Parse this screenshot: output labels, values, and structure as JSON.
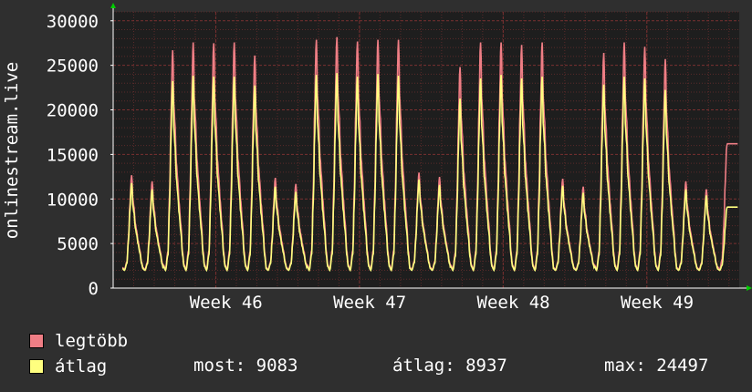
{
  "colors": {
    "background": "#2f2f2f",
    "plot_background": "#1e1e1e",
    "grid": "#5a2a2a",
    "axis": "#ffffff",
    "arrow": "#00cc00",
    "series_max": "#ef7e85",
    "series_avg": "#ffff7f"
  },
  "chart_data": {
    "type": "area",
    "ylabel": "onlinestream.live",
    "ylim": [
      0,
      31000
    ],
    "yticks": [
      "0",
      "5000",
      "10000",
      "15000",
      "20000",
      "25000",
      "30000"
    ],
    "ytick_values": [
      0,
      5000,
      10000,
      15000,
      20000,
      25000,
      30000
    ],
    "grid": true,
    "week_labels": [
      "Week 46",
      "Week 47",
      "Week 48",
      "Week 49"
    ],
    "week_label_positions_day": [
      5.5,
      12.5,
      19.5,
      26.5
    ],
    "x_range_days": [
      0,
      30.5
    ],
    "days": [
      0,
      1,
      2,
      3,
      4,
      5,
      6,
      7,
      8,
      9,
      10,
      11,
      12,
      13,
      14,
      15,
      16,
      17,
      18,
      19,
      20,
      21,
      22,
      23,
      24,
      25,
      26,
      27,
      28,
      29
    ],
    "series": [
      {
        "name": "legtöbb",
        "daily_peak": [
          12800,
          12100,
          27000,
          27900,
          27800,
          27900,
          26400,
          12500,
          11800,
          28200,
          28500,
          28000,
          28200,
          28200,
          13100,
          12600,
          25100,
          27900,
          27900,
          27600,
          27900,
          12400,
          11500,
          26700,
          27900,
          27400,
          26000,
          12100,
          11200,
          16200
        ]
      },
      {
        "name": "átlag",
        "daily_peak": [
          11900,
          11200,
          23500,
          24100,
          24000,
          24000,
          23000,
          11500,
          10900,
          24200,
          24400,
          24000,
          24300,
          24100,
          12300,
          11700,
          21500,
          23800,
          24200,
          23800,
          24000,
          11600,
          10800,
          23100,
          24000,
          23800,
          22500,
          11200,
          10500,
          9083
        ]
      }
    ],
    "night_min": 2100
  },
  "legend": {
    "items": [
      {
        "label": "legtöbb"
      },
      {
        "label": "átlag"
      }
    ]
  },
  "stats": {
    "most": "most: 9083",
    "atlag": "átlag: 8937",
    "max": "max: 24497"
  }
}
